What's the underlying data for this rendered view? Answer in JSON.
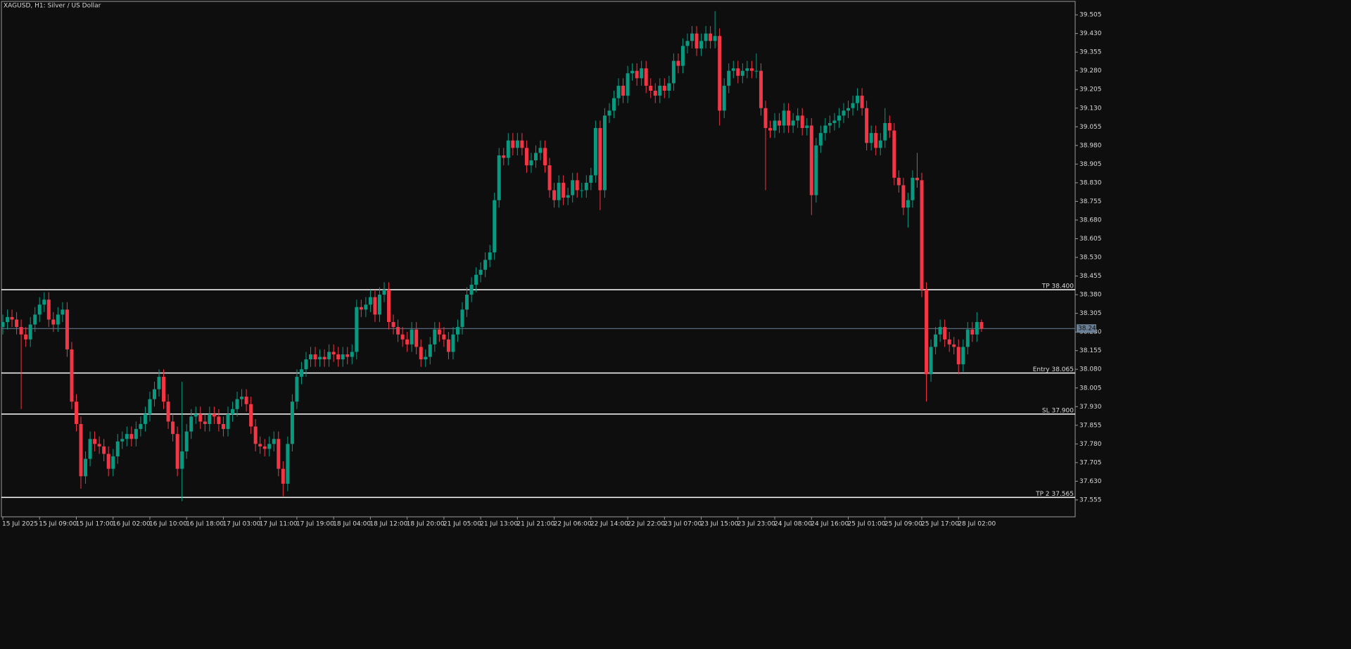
{
  "chart_data": {
    "type": "candlestick",
    "title": "XAGUSD, H1:  Silver / US Dollar",
    "up_color": "#089981",
    "down_color": "#f23645",
    "ylim": [
      37.487,
      39.559
    ],
    "yticks": [
      37.555,
      {
        "value": 37.63,
        "label": "37.630"
      },
      37.705,
      {
        "value": 37.78,
        "label": "37.780"
      },
      37.855,
      {
        "value": 37.93,
        "label": "37.930"
      },
      38.005,
      {
        "value": 38.08,
        "label": "38.080"
      },
      38.155,
      {
        "value": 38.23,
        "label": "38.230"
      },
      38.305,
      {
        "value": 38.38,
        "label": "38.380"
      },
      38.455,
      {
        "value": 38.53,
        "label": "38.530"
      },
      38.605,
      {
        "value": 38.68,
        "label": "38.680"
      },
      38.755,
      {
        "value": 38.83,
        "label": "38.830"
      },
      38.905,
      {
        "value": 38.98,
        "label": "38.980"
      },
      39.055,
      {
        "value": 39.13,
        "label": "39.130"
      },
      39.205,
      {
        "value": 39.28,
        "label": "39.280"
      },
      39.355,
      {
        "value": 39.43,
        "label": "39.430"
      },
      39.505
    ],
    "levels": [
      {
        "text": "TP 38.400",
        "value": 38.4
      },
      {
        "text": "Entry 38.065",
        "value": 38.065
      },
      {
        "text": "SL 37.900",
        "value": 37.9
      },
      {
        "text": "TP 2 37.565",
        "value": 37.565
      }
    ],
    "last_price": {
      "value": 38.244,
      "label": "38.244"
    },
    "categories": [
      "15 Jul 2025",
      null,
      null,
      null,
      null,
      null,
      null,
      null,
      "15 Jul 09:00",
      null,
      null,
      null,
      null,
      null,
      null,
      null,
      "15 Jul 17:00",
      null,
      null,
      null,
      null,
      null,
      null,
      null,
      "16 Jul 02:00",
      null,
      null,
      null,
      null,
      null,
      null,
      null,
      "16 Jul 10:00",
      null,
      null,
      null,
      null,
      null,
      null,
      null,
      "16 Jul 18:00",
      null,
      null,
      null,
      null,
      null,
      null,
      null,
      "17 Jul 03:00",
      null,
      null,
      null,
      null,
      null,
      null,
      null,
      "17 Jul 11:00",
      null,
      null,
      null,
      null,
      null,
      null,
      null,
      "17 Jul 19:00",
      null,
      null,
      null,
      null,
      null,
      null,
      null,
      "18 Jul 04:00",
      null,
      null,
      null,
      null,
      null,
      null,
      null,
      "18 Jul 12:00",
      null,
      null,
      null,
      null,
      null,
      null,
      null,
      "18 Jul 20:00",
      null,
      null,
      null,
      null,
      null,
      null,
      null,
      "21 Jul 05:00",
      null,
      null,
      null,
      null,
      null,
      null,
      null,
      "21 Jul 13:00",
      null,
      null,
      null,
      null,
      null,
      null,
      null,
      "21 Jul 21:00",
      null,
      null,
      null,
      null,
      null,
      null,
      null,
      "22 Jul 06:00",
      null,
      null,
      null,
      null,
      null,
      null,
      null,
      "22 Jul 14:00",
      null,
      null,
      null,
      null,
      null,
      null,
      null,
      "22 Jul 22:00",
      null,
      null,
      null,
      null,
      null,
      null,
      null,
      "23 Jul 07:00",
      null,
      null,
      null,
      null,
      null,
      null,
      null,
      "23 Jul 15:00",
      null,
      null,
      null,
      null,
      null,
      null,
      null,
      "23 Jul 23:00",
      null,
      null,
      null,
      null,
      null,
      null,
      null,
      "24 Jul 08:00",
      null,
      null,
      null,
      null,
      null,
      null,
      null,
      "24 Jul 16:00",
      null,
      null,
      null,
      null,
      null,
      null,
      null,
      "25 Jul 01:00",
      null,
      null,
      null,
      null,
      null,
      null,
      null,
      "25 Jul 09:00",
      null,
      null,
      null,
      null,
      null,
      null,
      null,
      "25 Jul 17:00",
      null,
      null,
      null,
      null,
      null,
      null,
      null,
      "28 Jul 02:00",
      null,
      null,
      null,
      null,
      null
    ],
    "open": [
      38.25,
      38.27,
      38.29,
      38.28,
      38.25,
      38.22,
      38.2,
      38.26,
      38.3,
      38.34,
      38.36,
      38.28,
      38.26,
      38.3,
      38.32,
      38.16,
      37.95,
      37.86,
      37.65,
      37.72,
      37.8,
      37.78,
      37.77,
      37.74,
      37.68,
      37.73,
      37.79,
      37.8,
      37.82,
      37.8,
      37.84,
      37.86,
      37.9,
      37.96,
      38.0,
      38.05,
      37.95,
      37.87,
      37.82,
      37.68,
      37.75,
      37.83,
      37.89,
      37.9,
      37.87,
      37.86,
      37.9,
      37.89,
      37.86,
      37.84,
      37.9,
      37.92,
      37.96,
      37.97,
      37.94,
      37.85,
      37.78,
      37.77,
      37.76,
      37.78,
      37.8,
      37.68,
      37.62,
      37.78,
      37.95,
      38.05,
      38.08,
      38.12,
      38.14,
      38.12,
      38.13,
      38.12,
      38.15,
      38.14,
      38.12,
      38.14,
      38.13,
      38.15,
      38.33,
      38.32,
      38.34,
      38.37,
      38.3,
      38.38,
      38.4,
      38.27,
      38.25,
      38.22,
      38.2,
      38.18,
      38.24,
      38.17,
      38.12,
      38.13,
      38.18,
      38.24,
      38.22,
      38.2,
      38.15,
      38.22,
      38.25,
      38.32,
      38.38,
      38.42,
      38.46,
      38.48,
      38.52,
      38.55,
      38.76,
      38.94,
      38.93,
      39.0,
      38.97,
      39.0,
      38.97,
      38.9,
      38.92,
      38.95,
      38.97,
      38.9,
      38.8,
      38.76,
      38.83,
      38.77,
      38.78,
      38.84,
      38.8,
      38.8,
      38.83,
      38.86,
      39.05,
      38.8,
      39.1,
      39.12,
      39.17,
      39.22,
      39.18,
      39.27,
      39.28,
      39.25,
      39.29,
      39.22,
      39.2,
      39.18,
      39.22,
      39.2,
      39.23,
      39.32,
      39.3,
      39.38,
      39.4,
      39.43,
      39.37,
      39.4,
      39.43,
      39.4,
      39.42,
      39.12,
      39.22,
      39.28,
      39.29,
      39.26,
      39.28,
      39.29,
      39.28,
      39.28,
      39.13,
      39.05,
      39.04,
      39.08,
      39.06,
      39.12,
      39.06,
      39.08,
      39.1,
      39.05,
      39.06,
      38.78,
      38.98,
      39.03,
      39.06,
      39.07,
      39.08,
      39.1,
      39.12,
      39.13,
      39.15,
      39.18,
      39.13,
      38.99,
      39.03,
      38.97,
      39.0,
      39.07,
      39.04,
      38.85,
      38.82,
      38.73,
      38.76,
      38.85,
      38.84,
      38.4,
      38.06,
      38.17,
      38.22,
      38.25,
      38.2,
      38.18,
      38.17,
      38.1,
      38.17,
      38.24,
      38.22,
      38.27
    ],
    "high": [
      38.3,
      38.32,
      38.32,
      38.31,
      38.28,
      38.25,
      38.29,
      38.33,
      38.37,
      38.39,
      38.39,
      38.31,
      38.33,
      38.35,
      38.35,
      38.19,
      37.98,
      37.89,
      37.75,
      37.83,
      37.83,
      37.81,
      37.8,
      37.77,
      37.76,
      37.82,
      37.83,
      37.85,
      37.85,
      37.87,
      37.89,
      37.93,
      37.99,
      38.03,
      38.08,
      38.08,
      37.98,
      37.9,
      37.85,
      38.03,
      37.86,
      37.92,
      37.93,
      37.93,
      37.9,
      37.93,
      37.93,
      37.92,
      37.89,
      37.93,
      37.95,
      37.99,
      38.0,
      38.0,
      37.97,
      37.88,
      37.81,
      37.8,
      37.81,
      37.83,
      37.83,
      37.71,
      37.81,
      37.98,
      38.08,
      38.11,
      38.15,
      38.17,
      38.17,
      38.16,
      38.16,
      38.18,
      38.18,
      38.17,
      38.17,
      38.17,
      38.18,
      38.36,
      38.36,
      38.37,
      38.4,
      38.4,
      38.41,
      38.43,
      38.43,
      38.3,
      38.28,
      38.25,
      38.23,
      38.27,
      38.27,
      38.2,
      38.16,
      38.21,
      38.27,
      38.27,
      38.25,
      38.23,
      38.25,
      38.28,
      38.35,
      38.41,
      38.45,
      38.49,
      38.51,
      38.55,
      38.58,
      38.79,
      38.97,
      38.97,
      39.03,
      39.03,
      39.03,
      39.03,
      39.0,
      38.95,
      38.98,
      39.0,
      39.0,
      38.93,
      38.83,
      38.86,
      38.86,
      38.81,
      38.87,
      38.87,
      38.83,
      38.86,
      38.89,
      39.08,
      39.08,
      39.13,
      39.15,
      39.2,
      39.25,
      39.25,
      39.3,
      39.31,
      39.31,
      39.32,
      39.32,
      39.25,
      39.23,
      39.25,
      39.25,
      39.26,
      39.35,
      39.35,
      39.41,
      39.43,
      39.46,
      39.46,
      39.43,
      39.46,
      39.46,
      39.52,
      39.45,
      39.25,
      39.31,
      39.32,
      39.32,
      39.31,
      39.32,
      39.32,
      39.35,
      39.31,
      39.16,
      39.08,
      39.11,
      39.11,
      39.15,
      39.15,
      39.11,
      39.13,
      39.13,
      39.09,
      39.09,
      39.01,
      39.06,
      39.09,
      39.1,
      39.11,
      39.13,
      39.15,
      39.16,
      39.18,
      39.21,
      39.21,
      39.16,
      39.06,
      39.06,
      39.03,
      39.13,
      39.1,
      39.07,
      38.88,
      38.85,
      38.79,
      38.88,
      38.95,
      38.87,
      38.43,
      38.2,
      38.25,
      38.28,
      38.28,
      38.23,
      38.21,
      38.2,
      38.2,
      38.27,
      38.27,
      38.31,
      38.28
    ],
    "low": [
      38.22,
      38.24,
      38.25,
      38.22,
      37.92,
      38.17,
      38.17,
      38.23,
      38.27,
      38.31,
      38.25,
      38.23,
      38.23,
      38.27,
      38.13,
      37.92,
      37.83,
      37.6,
      37.62,
      37.69,
      37.75,
      37.74,
      37.71,
      37.65,
      37.65,
      37.7,
      37.76,
      37.77,
      37.77,
      37.77,
      37.81,
      37.83,
      37.87,
      37.93,
      37.97,
      37.92,
      37.84,
      37.79,
      37.65,
      37.55,
      37.72,
      37.8,
      37.86,
      37.84,
      37.83,
      37.83,
      37.86,
      37.83,
      37.81,
      37.81,
      37.87,
      37.89,
      37.93,
      37.91,
      37.82,
      37.75,
      37.74,
      37.73,
      37.73,
      37.75,
      37.65,
      37.57,
      37.59,
      37.75,
      37.92,
      38.02,
      38.05,
      38.09,
      38.09,
      38.09,
      38.09,
      38.09,
      38.11,
      38.09,
      38.09,
      38.1,
      38.1,
      38.12,
      38.29,
      38.29,
      38.31,
      38.27,
      38.27,
      38.35,
      38.24,
      38.22,
      38.19,
      38.17,
      38.15,
      38.15,
      38.14,
      38.09,
      38.09,
      38.1,
      38.15,
      38.19,
      38.17,
      38.12,
      38.12,
      38.19,
      38.22,
      38.29,
      38.35,
      38.39,
      38.43,
      38.45,
      38.49,
      38.52,
      38.73,
      38.9,
      38.9,
      38.94,
      38.94,
      38.94,
      38.87,
      38.87,
      38.89,
      38.92,
      38.87,
      38.77,
      38.73,
      38.73,
      38.74,
      38.74,
      38.75,
      38.77,
      38.77,
      38.77,
      38.8,
      38.83,
      38.72,
      38.77,
      39.07,
      39.09,
      39.14,
      39.15,
      39.15,
      39.24,
      39.22,
      39.22,
      39.19,
      39.17,
      39.15,
      39.15,
      39.17,
      39.17,
      39.2,
      39.27,
      39.27,
      39.35,
      39.37,
      39.34,
      39.34,
      39.37,
      39.37,
      39.37,
      39.06,
      39.09,
      39.19,
      39.25,
      39.23,
      39.23,
      39.25,
      39.25,
      39.25,
      39.1,
      38.8,
      39.01,
      39.01,
      39.03,
      39.03,
      39.03,
      39.03,
      39.05,
      39.02,
      39.02,
      38.7,
      38.75,
      38.95,
      39.0,
      39.03,
      39.04,
      39.05,
      39.07,
      39.09,
      39.1,
      39.12,
      39.1,
      38.96,
      38.96,
      38.94,
      38.94,
      38.97,
      39.01,
      38.82,
      38.79,
      38.7,
      38.65,
      38.73,
      38.81,
      38.37,
      37.95,
      38.03,
      38.14,
      38.19,
      38.17,
      38.15,
      38.14,
      38.06,
      38.07,
      38.14,
      38.19,
      38.19,
      38.23
    ],
    "close": [
      38.27,
      38.29,
      38.28,
      38.25,
      38.22,
      38.2,
      38.26,
      38.3,
      38.34,
      38.36,
      38.28,
      38.26,
      38.3,
      38.32,
      38.16,
      37.95,
      37.86,
      37.65,
      37.72,
      37.8,
      37.78,
      37.77,
      37.74,
      37.68,
      37.73,
      37.79,
      37.8,
      37.82,
      37.8,
      37.84,
      37.86,
      37.9,
      37.96,
      38.0,
      38.05,
      37.95,
      37.87,
      37.82,
      37.68,
      37.75,
      37.83,
      37.89,
      37.9,
      37.87,
      37.86,
      37.9,
      37.89,
      37.86,
      37.84,
      37.9,
      37.92,
      37.96,
      37.97,
      37.94,
      37.85,
      37.78,
      37.77,
      37.76,
      37.78,
      37.8,
      37.68,
      37.62,
      37.78,
      37.95,
      38.05,
      38.08,
      38.12,
      38.14,
      38.12,
      38.13,
      38.12,
      38.15,
      38.14,
      38.12,
      38.14,
      38.13,
      38.15,
      38.33,
      38.32,
      38.34,
      38.37,
      38.3,
      38.38,
      38.4,
      38.27,
      38.25,
      38.22,
      38.2,
      38.18,
      38.24,
      38.17,
      38.12,
      38.13,
      38.18,
      38.24,
      38.22,
      38.2,
      38.15,
      38.22,
      38.25,
      38.32,
      38.38,
      38.42,
      38.46,
      38.48,
      38.52,
      38.55,
      38.76,
      38.94,
      38.93,
      39.0,
      38.97,
      39.0,
      38.97,
      38.9,
      38.92,
      38.95,
      38.97,
      38.9,
      38.8,
      38.76,
      38.83,
      38.77,
      38.78,
      38.84,
      38.8,
      38.8,
      38.83,
      38.86,
      39.05,
      38.8,
      39.1,
      39.12,
      39.17,
      39.22,
      39.18,
      39.27,
      39.28,
      39.25,
      39.29,
      39.22,
      39.2,
      39.18,
      39.22,
      39.2,
      39.23,
      39.32,
      39.3,
      39.38,
      39.4,
      39.43,
      39.37,
      39.4,
      39.43,
      39.4,
      39.42,
      39.12,
      39.22,
      39.28,
      39.29,
      39.26,
      39.28,
      39.29,
      39.28,
      39.28,
      39.13,
      39.05,
      39.04,
      39.08,
      39.06,
      39.12,
      39.06,
      39.08,
      39.1,
      39.05,
      39.06,
      38.78,
      38.98,
      39.03,
      39.06,
      39.07,
      39.08,
      39.1,
      39.12,
      39.13,
      39.15,
      39.18,
      39.13,
      38.99,
      39.03,
      38.97,
      39.0,
      39.07,
      39.04,
      38.85,
      38.82,
      38.73,
      38.76,
      38.85,
      38.84,
      38.4,
      38.06,
      38.17,
      38.22,
      38.25,
      38.2,
      38.18,
      38.17,
      38.1,
      38.17,
      38.24,
      38.22,
      38.27,
      38.244
    ]
  }
}
